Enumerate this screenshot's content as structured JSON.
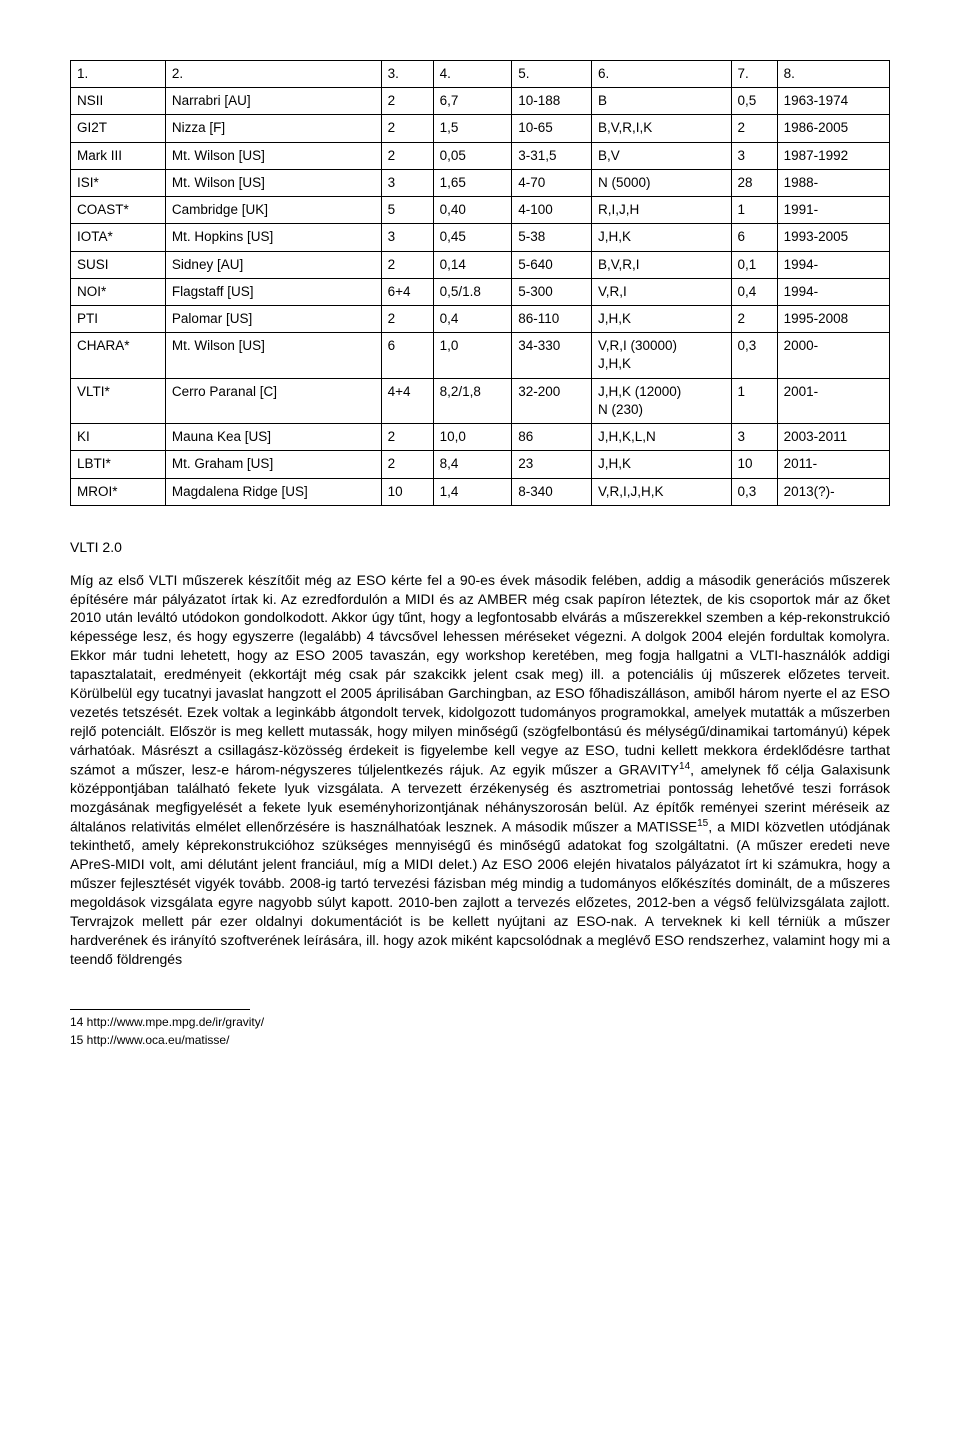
{
  "table": {
    "columns": [
      "1.",
      "2.",
      "3.",
      "4.",
      "5.",
      "6.",
      "7.",
      "8."
    ],
    "rows": [
      [
        "NSII",
        "Narrabri [AU]",
        "2",
        "6,7",
        "10-188",
        "B",
        "0,5",
        "1963-1974"
      ],
      [
        "GI2T",
        "Nizza [F]",
        "2",
        "1,5",
        "10-65",
        "B,V,R,I,K",
        "2",
        "1986-2005"
      ],
      [
        "Mark III",
        "Mt. Wilson [US]",
        "2",
        "0,05",
        "3-31,5",
        "B,V",
        "3",
        "1987-1992"
      ],
      [
        "ISI*",
        "Mt. Wilson [US]",
        "3",
        "1,65",
        "4-70",
        "N (5000)",
        "28",
        "1988-"
      ],
      [
        "COAST*",
        "Cambridge [UK]",
        "5",
        "0,40",
        "4-100",
        "R,I,J,H",
        "1",
        "1991-"
      ],
      [
        "IOTA*",
        "Mt. Hopkins [US]",
        "3",
        "0,45",
        "5-38",
        "J,H,K",
        "6",
        "1993-2005"
      ],
      [
        "SUSI",
        "Sidney [AU]",
        "2",
        "0,14",
        "5-640",
        "B,V,R,I",
        "0,1",
        "1994-"
      ],
      [
        "NOI*",
        "Flagstaff [US]",
        "6+4",
        "0,5/1.8",
        "5-300",
        "V,R,I",
        "0,4",
        "1994-"
      ],
      [
        "PTI",
        "Palomar [US]",
        "2",
        "0,4",
        "86-110",
        "J,H,K",
        "2",
        "1995-2008"
      ],
      [
        "CHARA*",
        "Mt. Wilson [US]",
        "6",
        "1,0",
        "34-330",
        "V,R,I (30000)\nJ,H,K",
        "0,3",
        "2000-"
      ],
      [
        "VLTI*",
        "Cerro Paranal [C]",
        "4+4",
        "8,2/1,8",
        "32-200",
        "J,H,K (12000)\nN (230)",
        "1",
        "2001-"
      ],
      [
        "KI",
        "Mauna Kea [US]",
        "2",
        "10,0",
        "86",
        "J,H,K,L,N",
        "3",
        "2003-2011"
      ],
      [
        "LBTI*",
        "Mt. Graham [US]",
        "2",
        "8,4",
        "23",
        "J,H,K",
        "10",
        "2011-"
      ],
      [
        "MROI*",
        "Magdalena Ridge [US]",
        "10",
        "1,4",
        "8-340",
        "V,R,I,J,H,K",
        "0,3",
        "2013(?)-"
      ]
    ]
  },
  "section_heading": "VLTI 2.0",
  "paragraph_a": "Míg az első VLTI műszerek készítőit még az ESO kérte fel a 90-es évek második felében, addig a második generációs műszerek építésére már pályázatot írtak ki. Az ezredfordulón a MIDI és az AMBER még csak papíron léteztek, de kis csoportok már az őket 2010 után leváltó utódokon gondolkodott. Akkor úgy tűnt, hogy a legfontosabb elvárás a műszerekkel szemben a kép-rekonstrukció képessége lesz, és hogy egyszerre (legalább) 4 távcsővel lehessen méréseket végezni. A dolgok 2004 elején fordultak komolyra. Ekkor már tudni lehetett, hogy az ESO 2005 tavaszán, egy workshop keretében, meg fogja hallgatni a VLTI-használók addigi tapasztalatait, eredményeit (ekkortájt még csak pár szakcikk jelent csak meg) ill. a potenciális új műszerek előzetes terveit. Körülbelül egy tucatnyi javaslat hangzott el 2005 áprilisában Garchingban, az ESO főhadiszálláson, amiből három nyerte el az ESO vezetés tetszését. Ezek voltak a leginkább átgondolt tervek, kidolgozott tudományos programokkal, amelyek mutatták a műszerben rejlő potenciált. Először is meg kellett mutassák, hogy milyen minőségű (szögfelbontású és mélységű/dinamikai tartományú) képek várhatóak. Másrészt a csillagász-közösség érdekeit is figyelembe kell vegye az ESO, tudni kellett mekkora érdeklődésre tarthat számot a műszer, lesz-e három-négyszeres túljelentkezés rájuk. Az egyik műszer a GRAVITY",
  "sup1": "14",
  "paragraph_b": ", amelynek fő célja Galaxisunk középpontjában található fekete lyuk vizsgálata. A tervezett érzékenység és asztrometriai pontosság lehetővé teszi források mozgásának megfigyelését a fekete lyuk eseményhorizontjának néhányszorosán belül. Az építők reményei szerint méréseik az általános relativitás elmélet ellenőrzésére is használhatóak lesznek. A második műszer a MATISSE",
  "sup2": "15",
  "paragraph_c": ", a MIDI közvetlen utódjának tekinthető, amely képrekonstrukcióhoz szükséges mennyiségű és minőségű adatokat fog szolgáltatni. (A műszer eredeti neve APreS-MIDI volt, ami délutánt jelent franciául, míg a MIDI delet.) Az ESO 2006 elején hivatalos pályázatot írt ki számukra, hogy a műszer fejlesztését vigyék tovább. 2008-ig tartó tervezési fázisban még mindig a tudományos előkészítés dominált, de a műszeres megoldások vizsgálata egyre nagyobb súlyt kapott. 2010-ben zajlott a tervezés előzetes, 2012-ben a végső felülvizsgálata zajlott. Tervrajzok mellett pár ezer oldalnyi dokumentációt is be kellett nyújtani az ESO-nak. A terveknek ki kell térniük a műszer hardverének és irányító szoftverének leírására, ill. hogy azok miként kapcsolódnak a meglévő ESO rendszerhez, valamint hogy mi a teendő földrengés",
  "footnote1": "14 http://www.mpe.mpg.de/ir/gravity/",
  "footnote2": "15 http://www.oca.eu/matisse/"
}
